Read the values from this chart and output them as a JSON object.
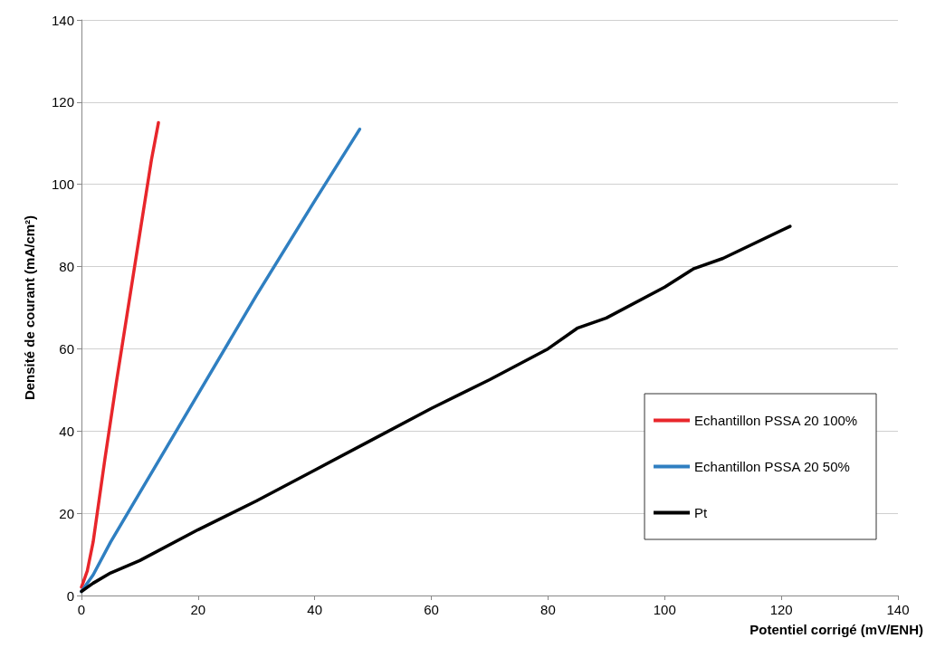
{
  "chart_data": {
    "type": "line",
    "xlabel": "Potentiel corrigé (mV/ENH)",
    "ylabel": "Densité de courant (mA/cm²)",
    "xlim": [
      0,
      140
    ],
    "xticks": [
      0,
      20,
      40,
      60,
      80,
      100,
      120,
      140
    ],
    "ylim": [
      0,
      140
    ],
    "yticks": [
      0,
      20,
      40,
      60,
      80,
      100,
      120,
      140
    ],
    "grid": "y",
    "legend": "right",
    "marker": "none",
    "line_style": "solid",
    "series": [
      {
        "name": "Echantillon PSSA 20 100%",
        "color": "#e8262b",
        "x": [
          0,
          0.5,
          1,
          2,
          4,
          6,
          8,
          10,
          12,
          13.2
        ],
        "values": [
          2,
          4,
          6,
          13,
          33,
          52,
          70,
          88,
          106,
          115
        ]
      },
      {
        "name": "Echantillon PSSA 20 50%",
        "color": "#2f7fc1",
        "x": [
          0,
          2,
          5,
          10,
          20,
          30,
          40,
          47.7
        ],
        "values": [
          1,
          5,
          13,
          25,
          49,
          73,
          96,
          113.4
        ]
      },
      {
        "name": "Pt",
        "color": "#000000",
        "x": [
          0,
          2,
          5,
          10,
          20,
          30,
          40,
          50,
          60,
          70,
          80,
          85,
          90,
          100,
          105,
          110,
          121.5
        ],
        "values": [
          1,
          3,
          5.5,
          8.5,
          16,
          23,
          30.5,
          38,
          45.5,
          52.5,
          60,
          65,
          67.5,
          75,
          79.5,
          82,
          89.8
        ]
      }
    ]
  }
}
